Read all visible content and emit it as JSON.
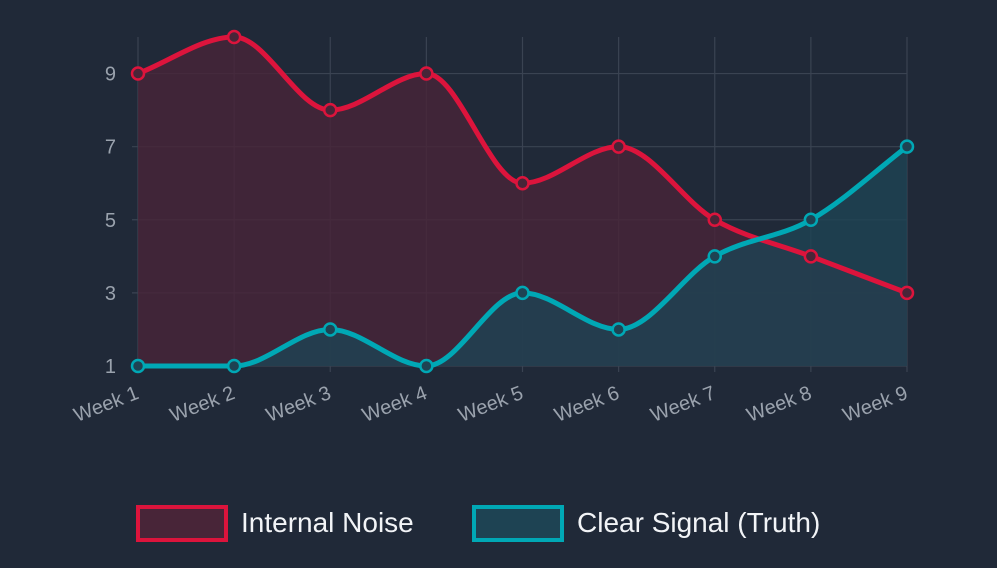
{
  "chart_data": {
    "type": "line",
    "title": "",
    "xlabel": "",
    "ylabel": "",
    "categories": [
      "Week 1",
      "Week 2",
      "Week 3",
      "Week 4",
      "Week 5",
      "Week 6",
      "Week 7",
      "Week 8",
      "Week 9"
    ],
    "ylim": [
      1,
      10
    ],
    "yticks": [
      "1",
      "3",
      "5",
      "7",
      "9"
    ],
    "grid": true,
    "filled": true,
    "smooth": true,
    "legend_position": "bottom-center",
    "series": [
      {
        "name": "Internal Noise",
        "color": "#dc143c",
        "fill": "#482538",
        "values": [
          9,
          10,
          8,
          9,
          6,
          7,
          5,
          4,
          3
        ]
      },
      {
        "name": "Clear Signal (Truth)",
        "color": "#00a8b5",
        "fill": "#1e4353",
        "values": [
          1,
          1,
          2,
          1,
          3,
          2,
          4,
          5,
          7
        ]
      }
    ]
  }
}
